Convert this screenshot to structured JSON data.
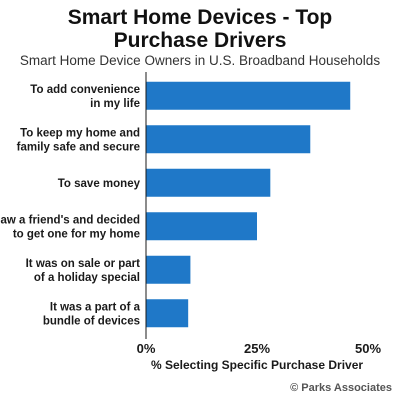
{
  "chart_data": {
    "type": "bar",
    "orientation": "horizontal",
    "title": "Smart Home Devices - Top Purchase Drivers",
    "subtitle": "Smart Home Device Owners in U.S. Broadband Households",
    "categories": [
      [
        "To add convenience",
        "in my life"
      ],
      [
        "To keep my home and",
        "family safe and secure"
      ],
      [
        "To save money"
      ],
      [
        "Saw a friend's and decided",
        "to get one for my home"
      ],
      [
        "It was on sale or part",
        "of a holiday special"
      ],
      [
        "It was a part of a",
        "bundle of devices"
      ]
    ],
    "values": [
      46,
      37,
      28,
      25,
      10,
      9.5
    ],
    "xlim": [
      0,
      50
    ],
    "xticks": [
      "0%",
      "25%",
      "50%"
    ],
    "xlabel": "% Selecting Specific Purchase Driver",
    "ylabel": "",
    "grid": false,
    "bar_color": "#1f78c8",
    "source": "© Parks Associates"
  }
}
